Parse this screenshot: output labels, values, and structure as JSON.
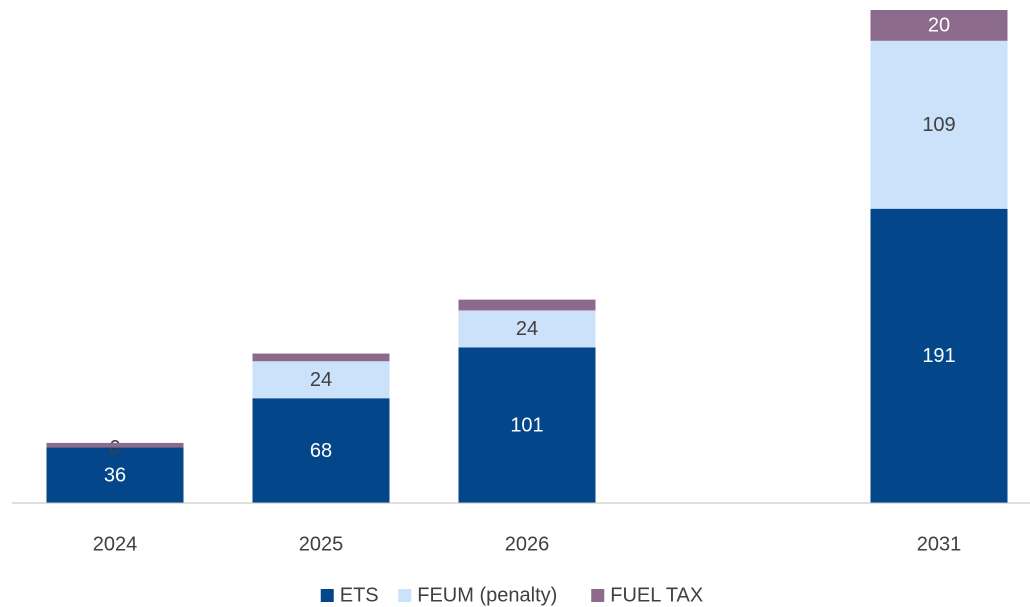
{
  "chart_data": {
    "type": "stacked_bar",
    "categories": [
      "2024",
      "2025",
      "2026",
      null,
      "2031"
    ],
    "series": [
      {
        "name": "ETS",
        "color": "#03468a",
        "values": [
          36,
          68,
          101,
          null,
          191
        ]
      },
      {
        "name": "FEUM (penalty)",
        "color": "#cce1fa",
        "values": [
          0,
          24,
          24,
          null,
          109
        ]
      },
      {
        "name": "FUEL TAX",
        "color": "#8c6a8c",
        "values": [
          3,
          5,
          7,
          null,
          20
        ],
        "value_labels": [
          null,
          null,
          null,
          null,
          "20"
        ]
      }
    ],
    "ylim": [
      0,
      320
    ],
    "legend": "bottom"
  }
}
